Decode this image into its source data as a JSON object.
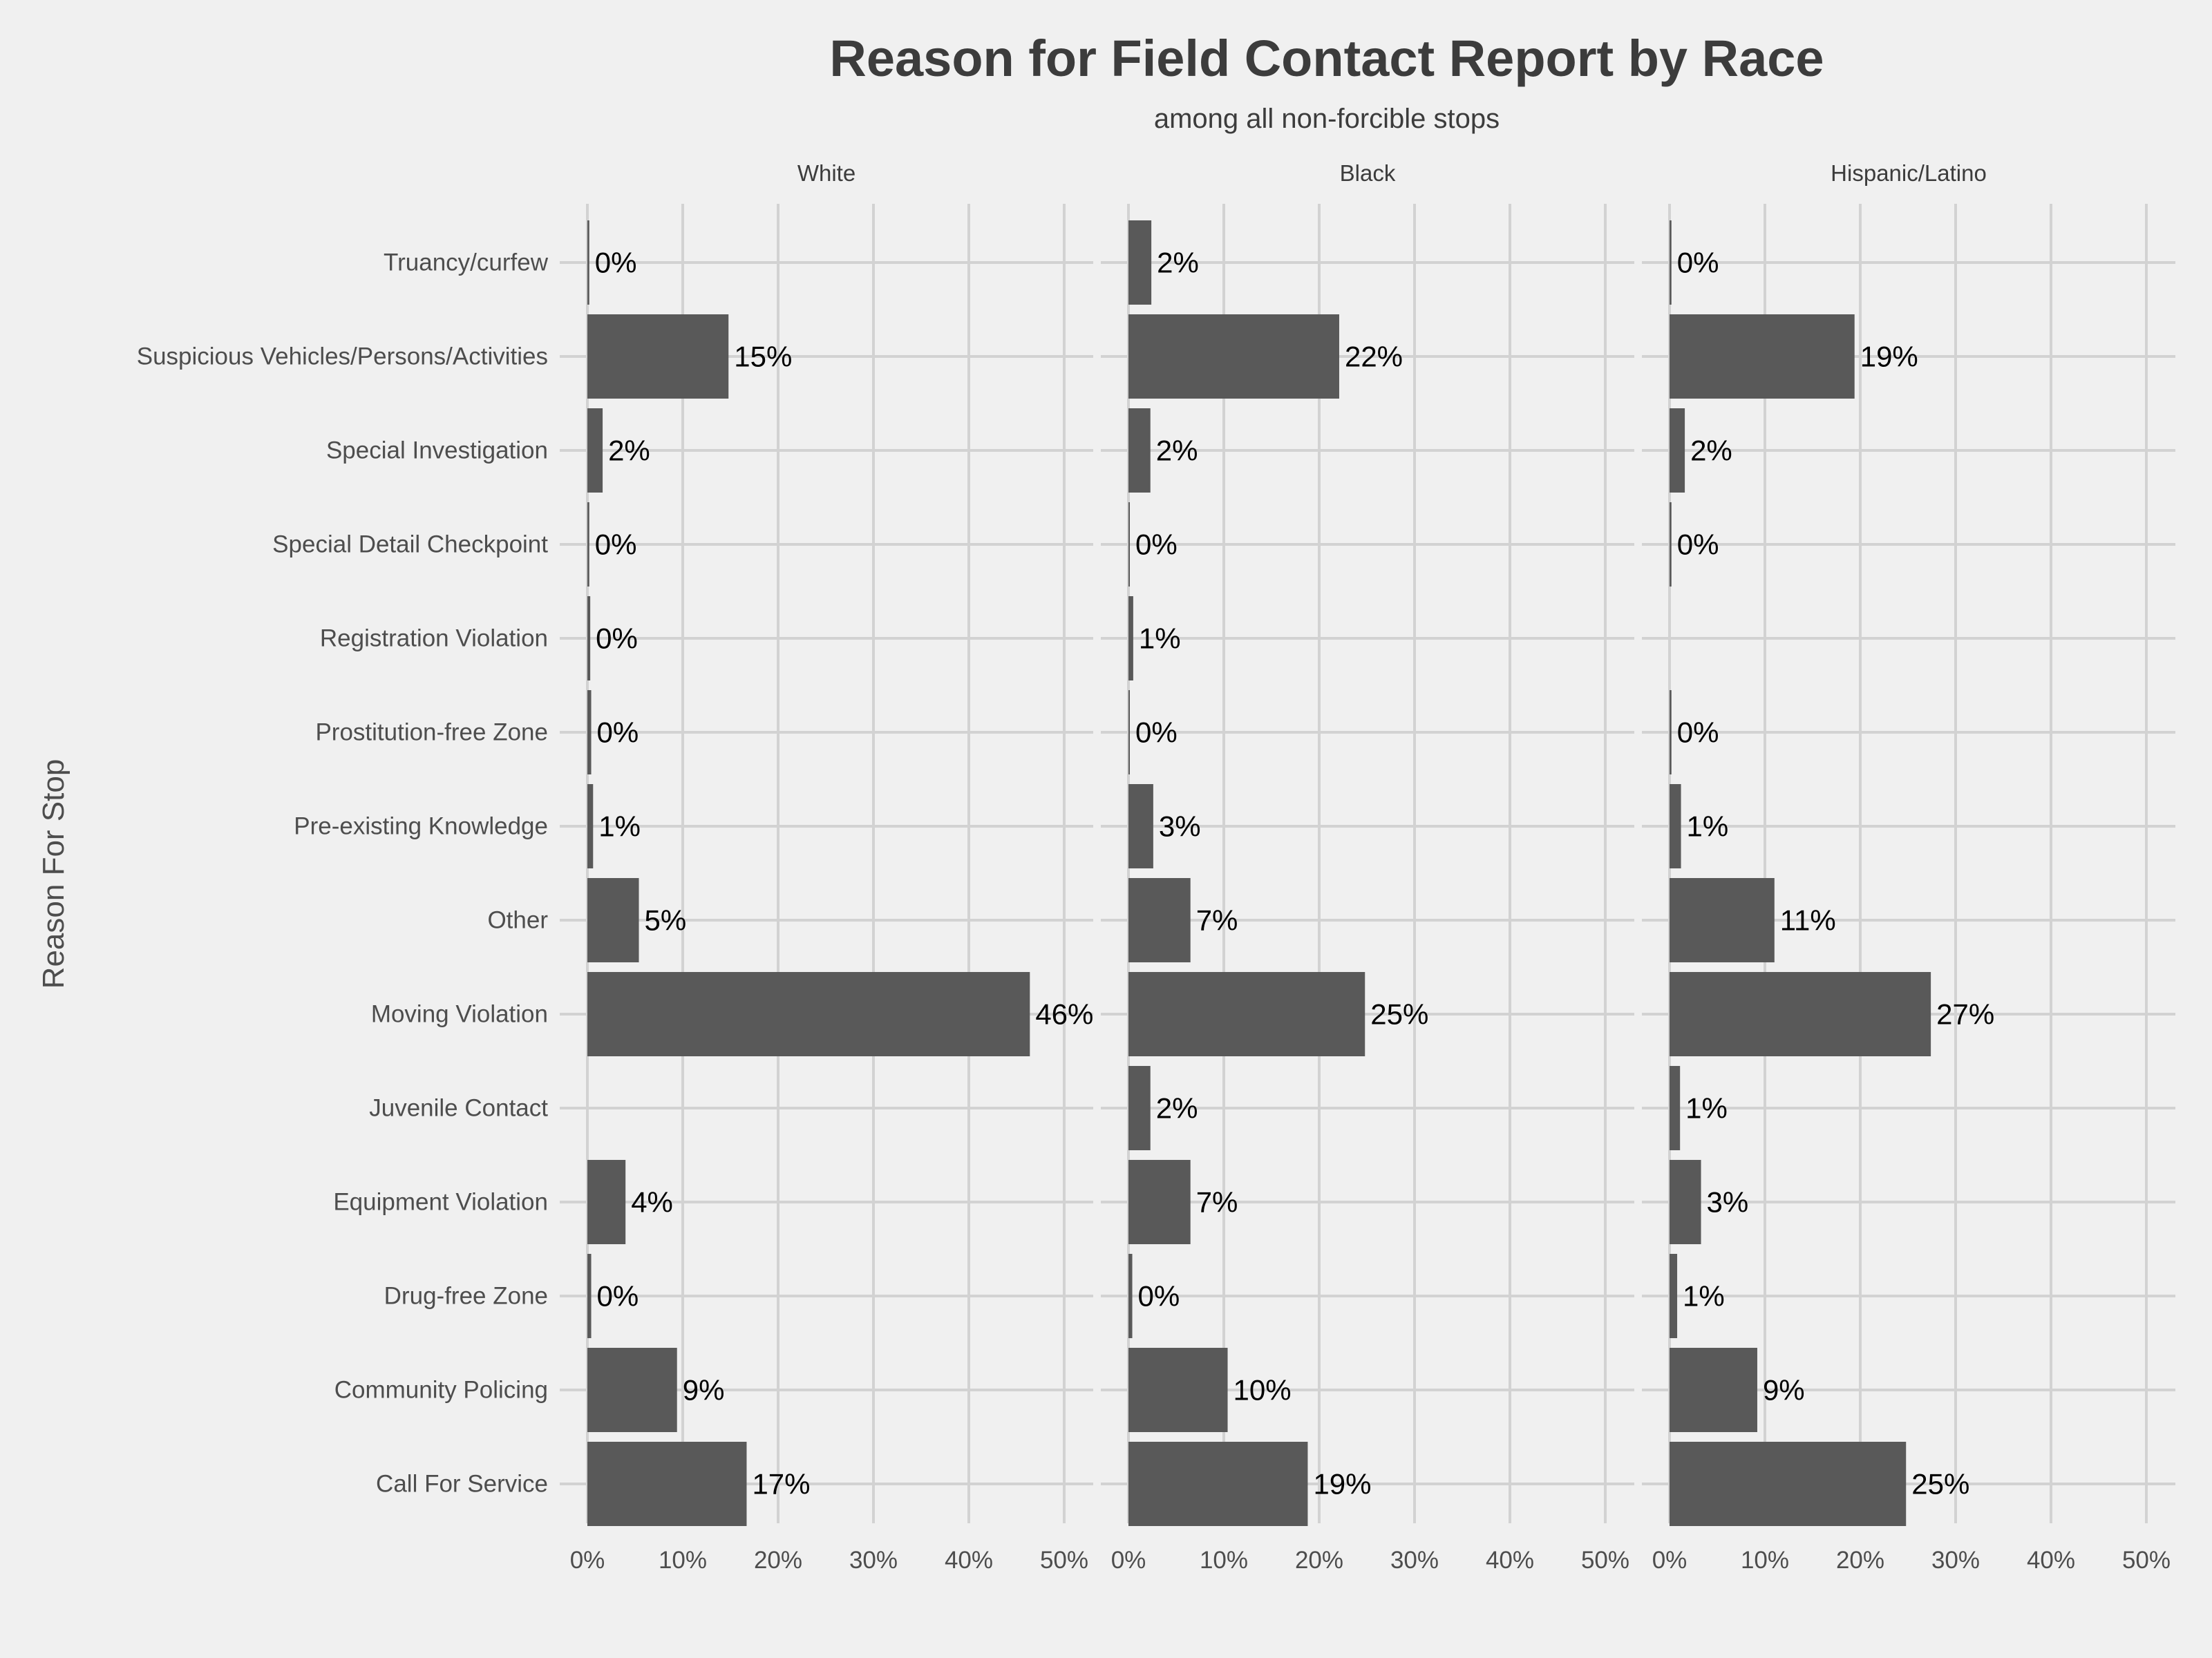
{
  "chart_data": {
    "type": "bar",
    "orientation": "horizontal",
    "title": "Reason for Field Contact Report by Race",
    "subtitle": "among all non-forcible stops",
    "ylabel": "Reason For Stop",
    "xlabel": "",
    "xlim": [
      0,
      50
    ],
    "xticks": [
      0,
      10,
      20,
      30,
      40,
      50
    ],
    "tick_format": "{v}%",
    "grid": true,
    "categories": [
      "Truancy/curfew",
      "Suspicious Vehicles/Persons/Activities",
      "Special Investigation",
      "Special Detail Checkpoint",
      "Registration Violation",
      "Prostitution-free Zone",
      "Pre-existing Knowledge",
      "Other",
      "Moving Violation",
      "Juvenile Contact",
      "Equipment Violation",
      "Drug-free Zone",
      "Community Policing",
      "Call For Service"
    ],
    "facets": [
      {
        "name": "White",
        "values": [
          0.2,
          14.8,
          1.6,
          0.2,
          0.3,
          0.4,
          0.6,
          5.4,
          46.4,
          null,
          4.0,
          0.4,
          9.4,
          16.7
        ],
        "labels": [
          "0%",
          "15%",
          "2%",
          "0%",
          "0%",
          "0%",
          "1%",
          "5%",
          "46%",
          null,
          "4%",
          "0%",
          "9%",
          "17%"
        ]
      },
      {
        "name": "Black",
        "values": [
          2.4,
          22.1,
          2.3,
          0.1,
          0.5,
          0.1,
          2.6,
          6.5,
          24.8,
          2.3,
          6.5,
          0.4,
          10.4,
          18.8
        ],
        "labels": [
          "2%",
          "22%",
          "2%",
          "0%",
          "1%",
          "0%",
          "3%",
          "7%",
          "25%",
          "2%",
          "7%",
          "0%",
          "10%",
          "19%"
        ]
      },
      {
        "name": "Hispanic/Latino",
        "values": [
          0.2,
          19.4,
          1.6,
          0.2,
          null,
          0.2,
          1.2,
          11.0,
          27.4,
          1.1,
          3.3,
          0.8,
          9.2,
          24.8
        ],
        "labels": [
          "0%",
          "19%",
          "2%",
          "0%",
          null,
          "0%",
          "1%",
          "11%",
          "27%",
          "1%",
          "3%",
          "1%",
          "9%",
          "25%"
        ]
      }
    ],
    "colors": {
      "background": "#f0f0f0",
      "bar": "#595959",
      "grid": "#d2d2d2",
      "text": "#3c3c3c",
      "data_label": "#000000"
    }
  }
}
